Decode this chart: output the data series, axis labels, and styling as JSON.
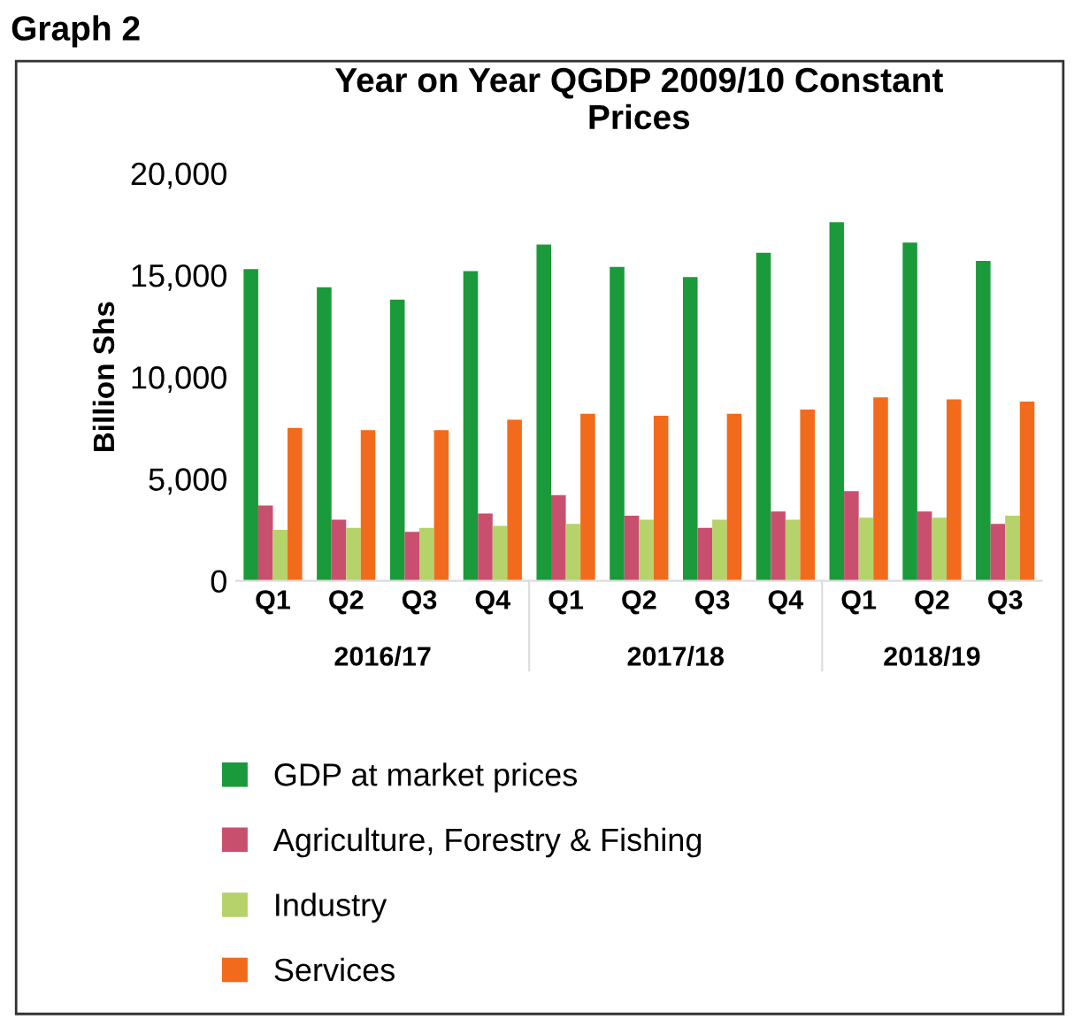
{
  "chart_data": {
    "type": "bar",
    "title": "Year on Year QGDP 2009/10 Constant\nPrices",
    "ylabel": "Billion Shs",
    "categories": [
      "Q1",
      "Q2",
      "Q3",
      "Q4",
      "Q1",
      "Q2",
      "Q3",
      "Q4",
      "Q1",
      "Q2",
      "Q3"
    ],
    "series": [
      {
        "name": "GDP at market prices",
        "color": "#1a9a3a",
        "values": [
          15300,
          14400,
          13800,
          15200,
          16500,
          15400,
          14900,
          16100,
          17600,
          16600,
          15700
        ]
      },
      {
        "name": "Agriculture, Forestry & Fishing",
        "color": "#c8506e",
        "values": [
          3700,
          3000,
          2400,
          3300,
          4200,
          3200,
          2600,
          3400,
          4400,
          3400,
          2800
        ]
      },
      {
        "name": "Industry",
        "color": "#b5d36a",
        "values": [
          2500,
          2600,
          2600,
          2700,
          2800,
          3000,
          3000,
          3000,
          3100,
          3100,
          3200
        ]
      },
      {
        "name": "Services",
        "color": "#f26b1d",
        "values": [
          7500,
          7400,
          7400,
          7900,
          8200,
          8100,
          8200,
          8400,
          9000,
          8900,
          8800
        ]
      }
    ],
    "ylim": [
      0,
      20000
    ],
    "yticks": [
      0,
      {
        "value": 5000,
        "label": "5,000"
      },
      {
        "value": 10000,
        "label": "10,000"
      },
      {
        "value": 15000,
        "label": "15,000"
      },
      {
        "value": 20000,
        "label": "20,000"
      }
    ],
    "grid": false,
    "legend": "bottom",
    "annotations": [
      "Graph 2",
      "2016/17",
      "2017/18",
      "2018/19"
    ]
  }
}
